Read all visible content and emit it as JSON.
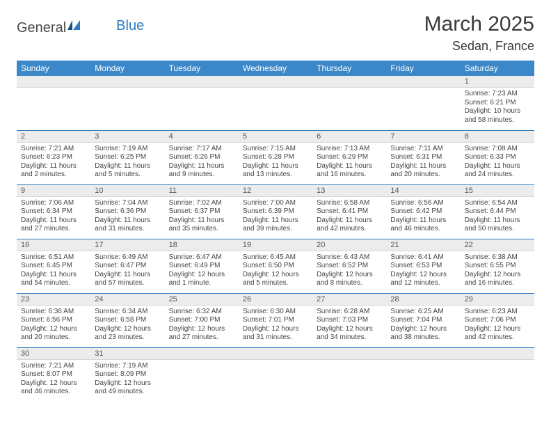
{
  "brand": {
    "part1": "General",
    "part2": "Blue"
  },
  "title": "March 2025",
  "location": "Sedan, France",
  "colors": {
    "header_bg": "#3b87c8",
    "header_text": "#ffffff",
    "row_divider": "#2f7bbf",
    "daynum_bg": "#ececec",
    "text": "#333333",
    "logo_blue": "#2f7bbf"
  },
  "weekdays": [
    "Sunday",
    "Monday",
    "Tuesday",
    "Wednesday",
    "Thursday",
    "Friday",
    "Saturday"
  ],
  "weeks": [
    [
      null,
      null,
      null,
      null,
      null,
      null,
      {
        "n": "1",
        "sunrise": "Sunrise: 7:23 AM",
        "sunset": "Sunset: 6:21 PM",
        "daylight": "Daylight: 10 hours and 58 minutes."
      }
    ],
    [
      {
        "n": "2",
        "sunrise": "Sunrise: 7:21 AM",
        "sunset": "Sunset: 6:23 PM",
        "daylight": "Daylight: 11 hours and 2 minutes."
      },
      {
        "n": "3",
        "sunrise": "Sunrise: 7:19 AM",
        "sunset": "Sunset: 6:25 PM",
        "daylight": "Daylight: 11 hours and 5 minutes."
      },
      {
        "n": "4",
        "sunrise": "Sunrise: 7:17 AM",
        "sunset": "Sunset: 6:26 PM",
        "daylight": "Daylight: 11 hours and 9 minutes."
      },
      {
        "n": "5",
        "sunrise": "Sunrise: 7:15 AM",
        "sunset": "Sunset: 6:28 PM",
        "daylight": "Daylight: 11 hours and 13 minutes."
      },
      {
        "n": "6",
        "sunrise": "Sunrise: 7:13 AM",
        "sunset": "Sunset: 6:29 PM",
        "daylight": "Daylight: 11 hours and 16 minutes."
      },
      {
        "n": "7",
        "sunrise": "Sunrise: 7:11 AM",
        "sunset": "Sunset: 6:31 PM",
        "daylight": "Daylight: 11 hours and 20 minutes."
      },
      {
        "n": "8",
        "sunrise": "Sunrise: 7:08 AM",
        "sunset": "Sunset: 6:33 PM",
        "daylight": "Daylight: 11 hours and 24 minutes."
      }
    ],
    [
      {
        "n": "9",
        "sunrise": "Sunrise: 7:06 AM",
        "sunset": "Sunset: 6:34 PM",
        "daylight": "Daylight: 11 hours and 27 minutes."
      },
      {
        "n": "10",
        "sunrise": "Sunrise: 7:04 AM",
        "sunset": "Sunset: 6:36 PM",
        "daylight": "Daylight: 11 hours and 31 minutes."
      },
      {
        "n": "11",
        "sunrise": "Sunrise: 7:02 AM",
        "sunset": "Sunset: 6:37 PM",
        "daylight": "Daylight: 11 hours and 35 minutes."
      },
      {
        "n": "12",
        "sunrise": "Sunrise: 7:00 AM",
        "sunset": "Sunset: 6:39 PM",
        "daylight": "Daylight: 11 hours and 39 minutes."
      },
      {
        "n": "13",
        "sunrise": "Sunrise: 6:58 AM",
        "sunset": "Sunset: 6:41 PM",
        "daylight": "Daylight: 11 hours and 42 minutes."
      },
      {
        "n": "14",
        "sunrise": "Sunrise: 6:56 AM",
        "sunset": "Sunset: 6:42 PM",
        "daylight": "Daylight: 11 hours and 46 minutes."
      },
      {
        "n": "15",
        "sunrise": "Sunrise: 6:54 AM",
        "sunset": "Sunset: 6:44 PM",
        "daylight": "Daylight: 11 hours and 50 minutes."
      }
    ],
    [
      {
        "n": "16",
        "sunrise": "Sunrise: 6:51 AM",
        "sunset": "Sunset: 6:45 PM",
        "daylight": "Daylight: 11 hours and 54 minutes."
      },
      {
        "n": "17",
        "sunrise": "Sunrise: 6:49 AM",
        "sunset": "Sunset: 6:47 PM",
        "daylight": "Daylight: 11 hours and 57 minutes."
      },
      {
        "n": "18",
        "sunrise": "Sunrise: 6:47 AM",
        "sunset": "Sunset: 6:49 PM",
        "daylight": "Daylight: 12 hours and 1 minute."
      },
      {
        "n": "19",
        "sunrise": "Sunrise: 6:45 AM",
        "sunset": "Sunset: 6:50 PM",
        "daylight": "Daylight: 12 hours and 5 minutes."
      },
      {
        "n": "20",
        "sunrise": "Sunrise: 6:43 AM",
        "sunset": "Sunset: 6:52 PM",
        "daylight": "Daylight: 12 hours and 8 minutes."
      },
      {
        "n": "21",
        "sunrise": "Sunrise: 6:41 AM",
        "sunset": "Sunset: 6:53 PM",
        "daylight": "Daylight: 12 hours and 12 minutes."
      },
      {
        "n": "22",
        "sunrise": "Sunrise: 6:38 AM",
        "sunset": "Sunset: 6:55 PM",
        "daylight": "Daylight: 12 hours and 16 minutes."
      }
    ],
    [
      {
        "n": "23",
        "sunrise": "Sunrise: 6:36 AM",
        "sunset": "Sunset: 6:56 PM",
        "daylight": "Daylight: 12 hours and 20 minutes."
      },
      {
        "n": "24",
        "sunrise": "Sunrise: 6:34 AM",
        "sunset": "Sunset: 6:58 PM",
        "daylight": "Daylight: 12 hours and 23 minutes."
      },
      {
        "n": "25",
        "sunrise": "Sunrise: 6:32 AM",
        "sunset": "Sunset: 7:00 PM",
        "daylight": "Daylight: 12 hours and 27 minutes."
      },
      {
        "n": "26",
        "sunrise": "Sunrise: 6:30 AM",
        "sunset": "Sunset: 7:01 PM",
        "daylight": "Daylight: 12 hours and 31 minutes."
      },
      {
        "n": "27",
        "sunrise": "Sunrise: 6:28 AM",
        "sunset": "Sunset: 7:03 PM",
        "daylight": "Daylight: 12 hours and 34 minutes."
      },
      {
        "n": "28",
        "sunrise": "Sunrise: 6:25 AM",
        "sunset": "Sunset: 7:04 PM",
        "daylight": "Daylight: 12 hours and 38 minutes."
      },
      {
        "n": "29",
        "sunrise": "Sunrise: 6:23 AM",
        "sunset": "Sunset: 7:06 PM",
        "daylight": "Daylight: 12 hours and 42 minutes."
      }
    ],
    [
      {
        "n": "30",
        "sunrise": "Sunrise: 7:21 AM",
        "sunset": "Sunset: 8:07 PM",
        "daylight": "Daylight: 12 hours and 46 minutes."
      },
      {
        "n": "31",
        "sunrise": "Sunrise: 7:19 AM",
        "sunset": "Sunset: 8:09 PM",
        "daylight": "Daylight: 12 hours and 49 minutes."
      },
      null,
      null,
      null,
      null,
      null
    ]
  ]
}
